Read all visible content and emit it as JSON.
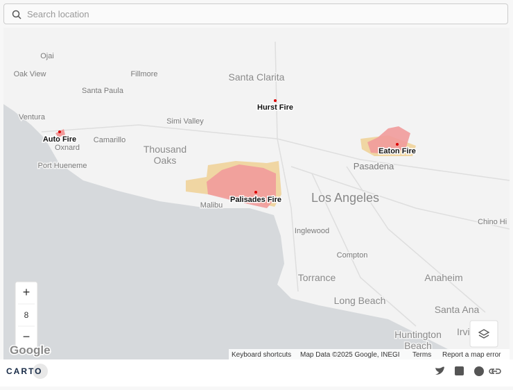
{
  "search": {
    "placeholder": "Search location"
  },
  "places": [
    "Ojai",
    "Oak View",
    "Fillmore",
    "Santa Clarita",
    "Santa Paula",
    "Ventura",
    "Oxnard",
    "Camarillo",
    "Simi Valley",
    "Thousand Oaks",
    "Port Hueneme",
    "Pasadena",
    "Malibu",
    "Los Angeles",
    "Inglewood",
    "Chino Hi",
    "Compton",
    "Torrance",
    "Anaheim",
    "Long Beach",
    "Santa Ana",
    "Huntington Beach",
    "Irvi"
  ],
  "fires": [
    "Auto Fire",
    "Hurst Fire",
    "Eaton Fire",
    "Palisades Fire"
  ],
  "zoom": {
    "in": "+",
    "level": 8,
    "out": "−"
  },
  "map_credit": "Google",
  "attribution": [
    "Keyboard shortcuts",
    "Map Data ©2025 Google, INEGI",
    "Terms",
    "Report a map error"
  ],
  "footer": {
    "brand": "CARTO"
  }
}
